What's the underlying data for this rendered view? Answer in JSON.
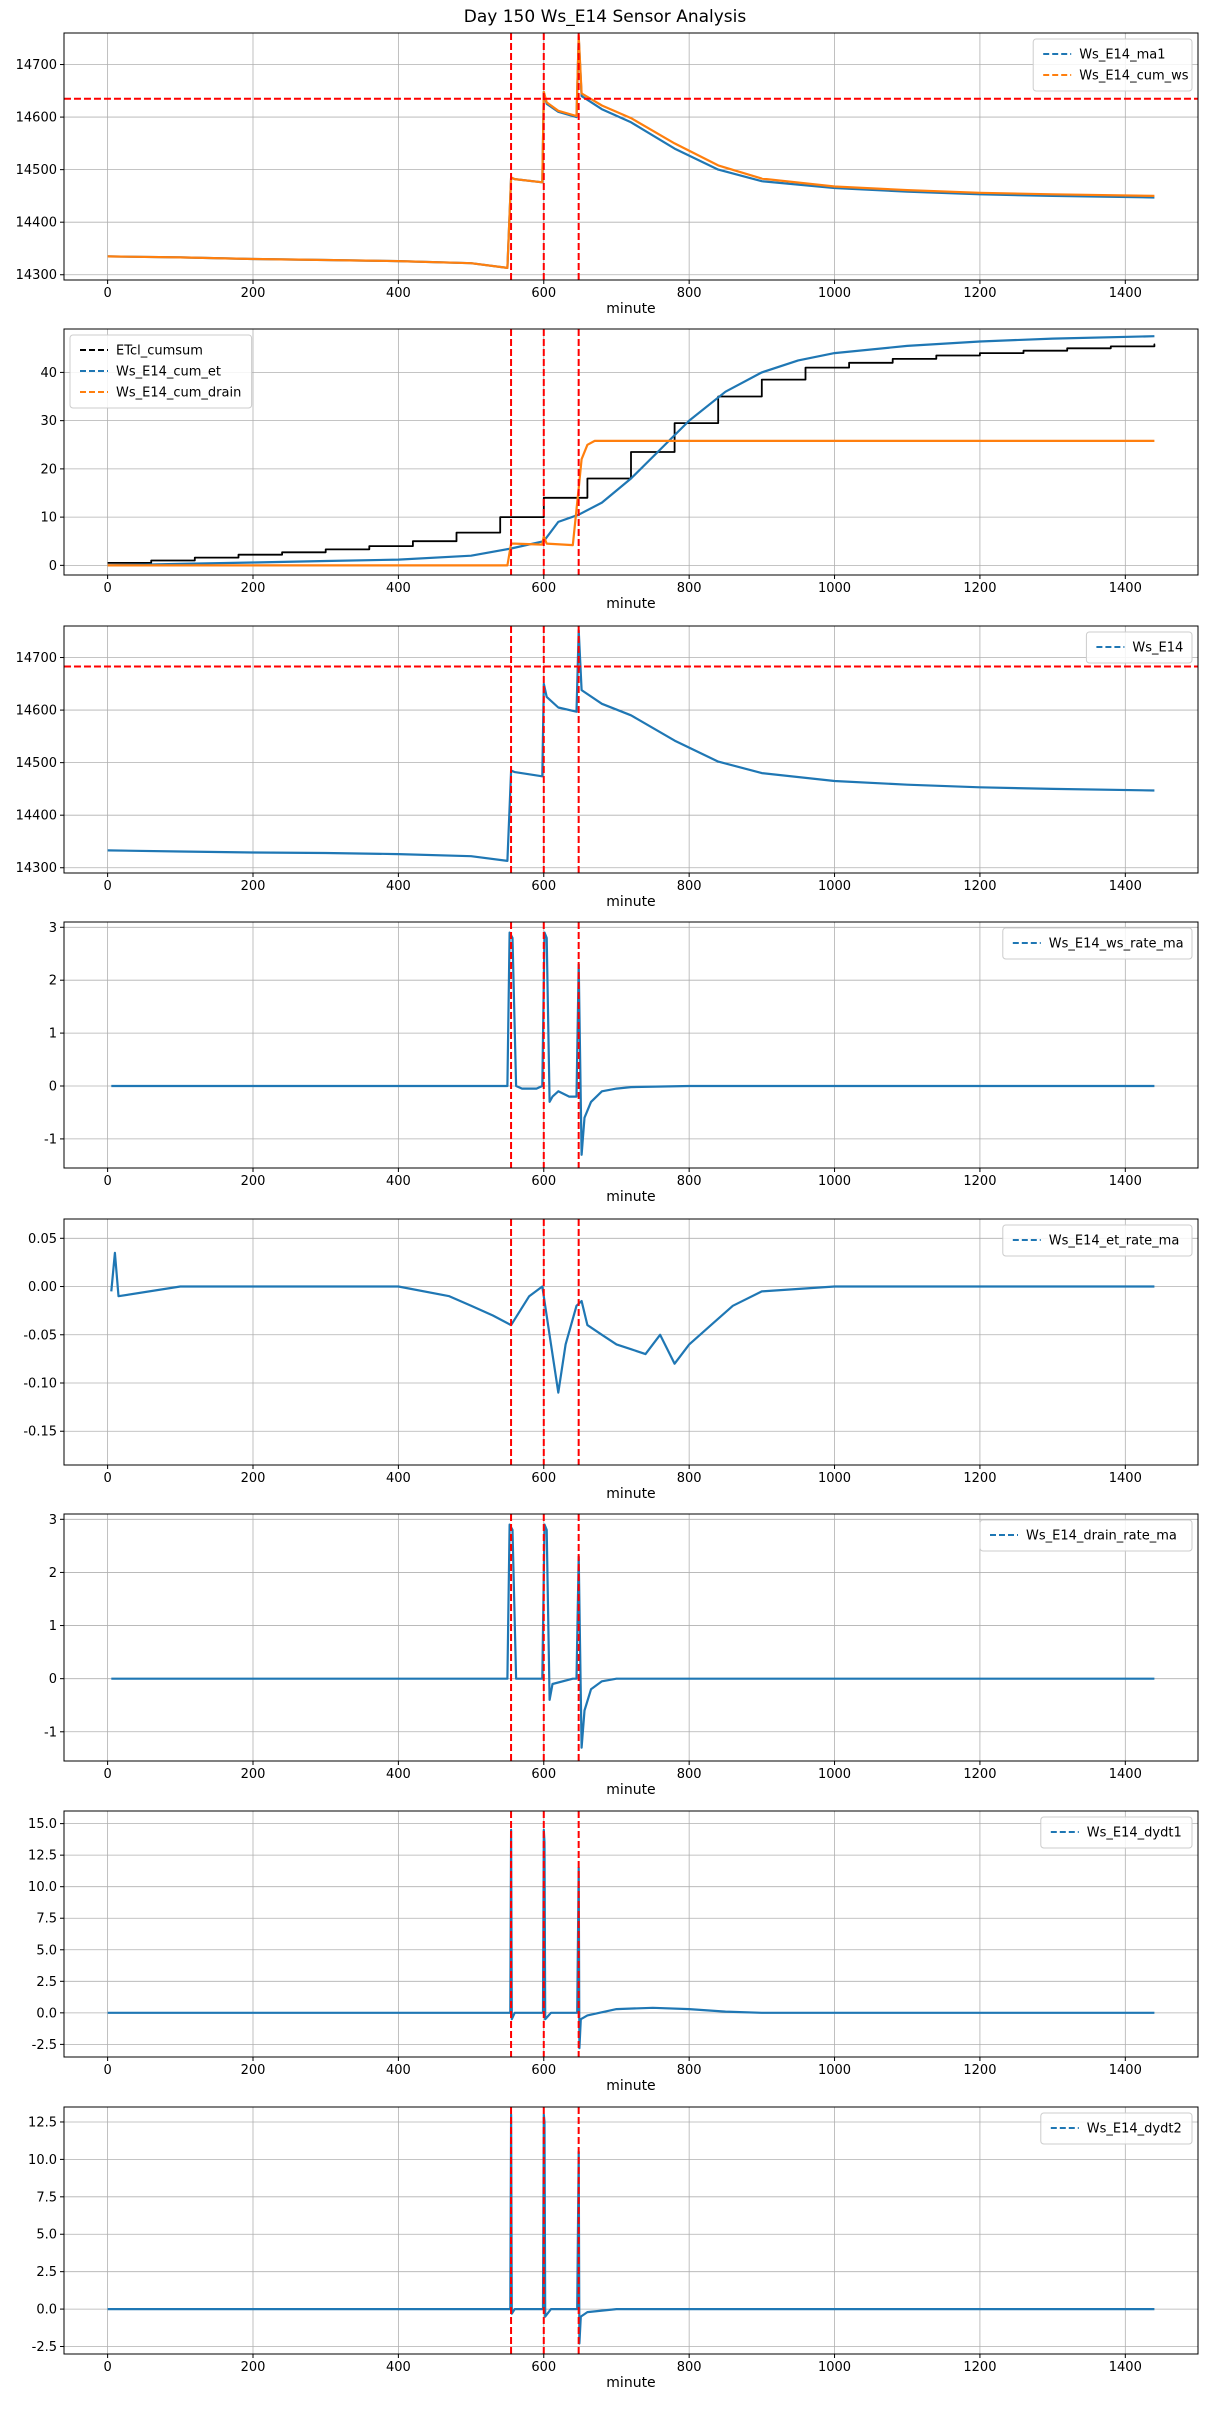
{
  "title": "Day 150 Ws_E14 Sensor Analysis",
  "colors": {
    "blue": "#1f77b4",
    "orange": "#ff7f0e",
    "black": "#000000",
    "red": "#ff0000",
    "grid": "#b0b0b0"
  },
  "chart_data": [
    {
      "type": "line",
      "xlabel": "minute",
      "xlim": [
        -60,
        1500
      ],
      "ylim": [
        14290,
        14760
      ],
      "xticks": [
        0,
        200,
        400,
        600,
        800,
        1000,
        1200,
        1400
      ],
      "yticks": [
        14300,
        14400,
        14500,
        14600,
        14700
      ],
      "legend": "top-right",
      "vlines": [
        555,
        600,
        648
      ],
      "hlines": [
        14635
      ],
      "series": [
        {
          "name": "Ws_E14_ma1",
          "color": "#1f77b4",
          "width": 2.2,
          "x": [
            0,
            100,
            200,
            300,
            400,
            500,
            550,
            555,
            560,
            598,
            600,
            604,
            620,
            645,
            648,
            652,
            680,
            720,
            780,
            840,
            900,
            1000,
            1100,
            1200,
            1300,
            1440
          ],
          "y": [
            14335,
            14333,
            14330,
            14328,
            14326,
            14322,
            14313,
            14485,
            14482,
            14476,
            14648,
            14625,
            14610,
            14600,
            14752,
            14640,
            14615,
            14590,
            14540,
            14500,
            14478,
            14465,
            14458,
            14453,
            14450,
            14447
          ]
        },
        {
          "name": "Ws_E14_cum_ws",
          "color": "#ff7f0e",
          "width": 2.2,
          "x": [
            0,
            100,
            200,
            300,
            400,
            500,
            550,
            555,
            560,
            598,
            600,
            604,
            620,
            645,
            648,
            652,
            680,
            720,
            780,
            840,
            900,
            1000,
            1100,
            1200,
            1300,
            1440
          ],
          "y": [
            14335,
            14333,
            14330,
            14328,
            14326,
            14322,
            14313,
            14485,
            14482,
            14476,
            14648,
            14628,
            14612,
            14602,
            14755,
            14645,
            14622,
            14598,
            14550,
            14508,
            14483,
            14468,
            14461,
            14456,
            14453,
            14450
          ]
        }
      ]
    },
    {
      "type": "line",
      "xlabel": "minute",
      "xlim": [
        -60,
        1500
      ],
      "ylim": [
        -2,
        49
      ],
      "xticks": [
        0,
        200,
        400,
        600,
        800,
        1000,
        1200,
        1400
      ],
      "yticks": [
        0,
        10,
        20,
        30,
        40
      ],
      "legend": "top-left",
      "vlines": [
        555,
        600,
        648
      ],
      "hlines": [],
      "series": [
        {
          "name": "ETcl_cumsum",
          "color": "#000000",
          "width": 1.8,
          "step": true,
          "x": [
            0,
            60,
            120,
            180,
            240,
            300,
            360,
            420,
            480,
            540,
            600,
            660,
            720,
            780,
            840,
            900,
            960,
            1020,
            1080,
            1140,
            1200,
            1260,
            1320,
            1380,
            1440
          ],
          "y": [
            0.5,
            1.0,
            1.6,
            2.2,
            2.7,
            3.3,
            4.0,
            5.0,
            6.8,
            10.0,
            14.0,
            18.0,
            23.5,
            29.5,
            35.0,
            38.5,
            41.0,
            42.0,
            42.8,
            43.5,
            44.0,
            44.5,
            45.0,
            45.4,
            45.8
          ]
        },
        {
          "name": "Ws_E14_cum_et",
          "color": "#1f77b4",
          "width": 2.2,
          "x": [
            0,
            100,
            200,
            300,
            400,
            500,
            555,
            600,
            620,
            648,
            680,
            720,
            760,
            800,
            850,
            900,
            950,
            1000,
            1100,
            1200,
            1300,
            1440
          ],
          "y": [
            0,
            0.3,
            0.6,
            0.9,
            1.2,
            2.0,
            3.5,
            5.0,
            9.0,
            10.5,
            13.0,
            18.0,
            24.0,
            30.0,
            36.0,
            40.0,
            42.5,
            44.0,
            45.5,
            46.4,
            47.0,
            47.5
          ]
        },
        {
          "name": "Ws_E14_cum_drain",
          "color": "#ff7f0e",
          "width": 2.2,
          "x": [
            0,
            550,
            555,
            560,
            598,
            600,
            604,
            640,
            648,
            652,
            660,
            670,
            1440
          ],
          "y": [
            0,
            0,
            4.5,
            4.5,
            4.3,
            6.0,
            4.5,
            4.2,
            16.0,
            22.0,
            25.0,
            25.8,
            25.8
          ]
        }
      ]
    },
    {
      "type": "line",
      "xlabel": "minute",
      "xlim": [
        -60,
        1500
      ],
      "ylim": [
        14290,
        14760
      ],
      "xticks": [
        0,
        200,
        400,
        600,
        800,
        1000,
        1200,
        1400
      ],
      "yticks": [
        14300,
        14400,
        14500,
        14600,
        14700
      ],
      "legend": "top-right",
      "vlines": [
        555,
        600,
        648
      ],
      "hlines": [
        14683
      ],
      "series": [
        {
          "name": "Ws_E14",
          "color": "#1f77b4",
          "width": 2.2,
          "x": [
            0,
            100,
            200,
            300,
            400,
            500,
            550,
            555,
            560,
            598,
            600,
            604,
            620,
            645,
            648,
            652,
            680,
            720,
            780,
            840,
            900,
            1000,
            1100,
            1200,
            1300,
            1440
          ],
          "y": [
            14333,
            14331,
            14329,
            14328,
            14326,
            14322,
            14313,
            14485,
            14482,
            14474,
            14650,
            14625,
            14605,
            14597,
            14752,
            14638,
            14612,
            14590,
            14542,
            14502,
            14480,
            14465,
            14458,
            14453,
            14450,
            14447
          ]
        }
      ]
    },
    {
      "type": "line",
      "xlabel": "minute",
      "xlim": [
        -60,
        1500
      ],
      "ylim": [
        -1.55,
        3.1
      ],
      "xticks": [
        0,
        200,
        400,
        600,
        800,
        1000,
        1200,
        1400
      ],
      "yticks": [
        -1,
        0,
        1,
        2,
        3
      ],
      "legend": "top-right",
      "vlines": [
        555,
        600,
        648
      ],
      "hlines": [],
      "series": [
        {
          "name": "Ws_E14_ws_rate_ma",
          "color": "#1f77b4",
          "width": 2.2,
          "x": [
            5,
            100,
            200,
            300,
            400,
            500,
            550,
            553,
            557,
            562,
            570,
            590,
            598,
            601,
            604,
            608,
            612,
            620,
            635,
            645,
            648,
            652,
            656,
            665,
            680,
            700,
            720,
            800,
            900,
            1000,
            1200,
            1440
          ],
          "y": [
            0,
            0,
            0,
            0,
            0,
            0,
            0,
            2.9,
            2.8,
            0.0,
            -0.05,
            -0.05,
            0,
            2.9,
            2.8,
            -0.3,
            -0.2,
            -0.1,
            -0.2,
            -0.2,
            2.3,
            -1.3,
            -0.6,
            -0.3,
            -0.1,
            -0.05,
            -0.02,
            0,
            0,
            0,
            0,
            0
          ]
        }
      ]
    },
    {
      "type": "line",
      "xlabel": "minute",
      "xlim": [
        -60,
        1500
      ],
      "ylim": [
        -0.185,
        0.07
      ],
      "xticks": [
        0,
        200,
        400,
        600,
        800,
        1000,
        1200,
        1400
      ],
      "yticks": [
        -0.15,
        -0.1,
        -0.05,
        0.0,
        0.05
      ],
      "legend": "top-right",
      "vlines": [
        555,
        600,
        648
      ],
      "hlines": [],
      "series": [
        {
          "name": "Ws_E14_et_rate_ma",
          "color": "#1f77b4",
          "width": 2.2,
          "x": [
            5,
            10,
            15,
            100,
            200,
            300,
            400,
            470,
            500,
            530,
            555,
            580,
            598,
            610,
            620,
            630,
            645,
            652,
            660,
            680,
            700,
            720,
            740,
            760,
            780,
            800,
            830,
            860,
            900,
            1000,
            1100,
            1200,
            1300,
            1440
          ],
          "y": [
            -0.005,
            0.035,
            -0.01,
            0,
            0,
            0,
            0,
            -0.01,
            -0.02,
            -0.03,
            -0.04,
            -0.01,
            0.0,
            -0.06,
            -0.11,
            -0.06,
            -0.02,
            -0.015,
            -0.04,
            -0.05,
            -0.06,
            -0.065,
            -0.07,
            -0.05,
            -0.08,
            -0.06,
            -0.04,
            -0.02,
            -0.005,
            0,
            0,
            0,
            0,
            0
          ]
        }
      ]
    },
    {
      "type": "line",
      "xlabel": "minute",
      "xlim": [
        -60,
        1500
      ],
      "ylim": [
        -1.55,
        3.1
      ],
      "xticks": [
        0,
        200,
        400,
        600,
        800,
        1000,
        1200,
        1400
      ],
      "yticks": [
        -1,
        0,
        1,
        2,
        3
      ],
      "legend": "top-right",
      "vlines": [
        555,
        600,
        648
      ],
      "hlines": [],
      "series": [
        {
          "name": "Ws_E14_drain_rate_ma",
          "color": "#1f77b4",
          "width": 2.2,
          "x": [
            5,
            550,
            553,
            557,
            562,
            598,
            601,
            604,
            608,
            612,
            640,
            645,
            648,
            652,
            656,
            665,
            680,
            700,
            1440
          ],
          "y": [
            0,
            0,
            2.9,
            2.8,
            0,
            0,
            2.9,
            2.8,
            -0.4,
            -0.1,
            0,
            0,
            2.3,
            -1.3,
            -0.6,
            -0.2,
            -0.05,
            0,
            0
          ]
        }
      ]
    },
    {
      "type": "line",
      "xlabel": "minute",
      "xlim": [
        -60,
        1500
      ],
      "ylim": [
        -3.5,
        16
      ],
      "xticks": [
        0,
        200,
        400,
        600,
        800,
        1000,
        1200,
        1400
      ],
      "yticks": [
        -2.5,
        0.0,
        2.5,
        5.0,
        7.5,
        10.0,
        12.5,
        15.0
      ],
      "legend": "top-right",
      "vlines": [
        555,
        600,
        648
      ],
      "hlines": [],
      "series": [
        {
          "name": "Ws_E14_dydt1",
          "color": "#1f77b4",
          "width": 2.2,
          "x": [
            0,
            100,
            200,
            300,
            400,
            500,
            554,
            555,
            556,
            560,
            599,
            600,
            601,
            602,
            610,
            646,
            648,
            649,
            651,
            660,
            700,
            750,
            800,
            850,
            900,
            1000,
            1200,
            1440
          ],
          "y": [
            0,
            0,
            0,
            0,
            0,
            0,
            0,
            14.5,
            -0.5,
            0,
            0,
            14.5,
            13.5,
            -0.5,
            0,
            0,
            11.5,
            -2.8,
            -0.5,
            -0.2,
            0.3,
            0.4,
            0.3,
            0.1,
            0,
            0,
            0,
            0
          ]
        }
      ]
    },
    {
      "type": "line",
      "xlabel": "minute",
      "xlim": [
        -60,
        1500
      ],
      "ylim": [
        -3.0,
        13.5
      ],
      "xticks": [
        0,
        200,
        400,
        600,
        800,
        1000,
        1200,
        1400
      ],
      "yticks": [
        -2.5,
        0.0,
        2.5,
        5.0,
        7.5,
        10.0,
        12.5
      ],
      "legend": "top-right",
      "vlines": [
        555,
        600,
        648
      ],
      "hlines": [],
      "series": [
        {
          "name": "Ws_E14_dydt2",
          "color": "#1f77b4",
          "width": 2.2,
          "x": [
            0,
            100,
            200,
            300,
            400,
            500,
            554,
            555,
            556,
            560,
            599,
            600,
            601,
            602,
            610,
            646,
            648,
            649,
            651,
            660,
            700,
            800,
            900,
            1000,
            1200,
            1440
          ],
          "y": [
            0,
            0,
            0,
            0,
            0,
            0,
            0,
            13.0,
            -0.3,
            0,
            0,
            13.0,
            12.5,
            -0.5,
            0,
            0,
            10.5,
            -2.3,
            -0.5,
            -0.2,
            0,
            0,
            0,
            0,
            0,
            0
          ]
        }
      ]
    }
  ]
}
